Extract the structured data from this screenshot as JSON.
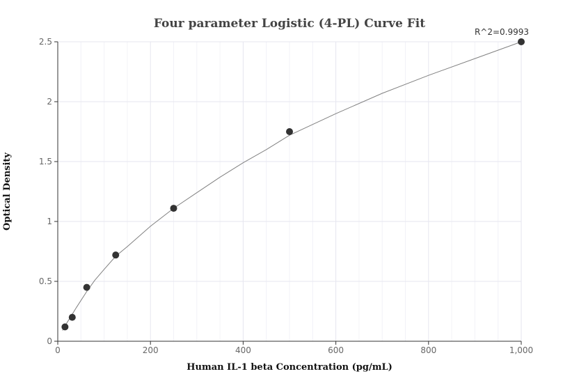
{
  "chart_data": {
    "type": "scatter",
    "title": "Four parameter Logistic (4-PL) Curve Fit",
    "xlabel": "Human IL-1 beta Concentration (pg/mL)",
    "ylabel": "Optical Density",
    "xlim": [
      0,
      1000
    ],
    "ylim": [
      0,
      2.5
    ],
    "x_ticks": [
      0,
      200,
      400,
      600,
      800,
      1000
    ],
    "x_tick_labels": [
      "0",
      "200",
      "400",
      "600",
      "800",
      "1,000"
    ],
    "y_ticks": [
      0,
      0.5,
      1,
      1.5,
      2,
      2.5
    ],
    "y_tick_labels": [
      "0",
      "0.5",
      "1",
      "1.5",
      "2",
      "2.5"
    ],
    "grid": true,
    "points": {
      "x": [
        15.6,
        31.25,
        62.5,
        125,
        250,
        500,
        1000
      ],
      "y": [
        0.12,
        0.2,
        0.45,
        0.72,
        1.11,
        1.75,
        2.5
      ]
    },
    "fit_curve": {
      "model": "4PL",
      "x": [
        10,
        15.6,
        20,
        31.25,
        40,
        62.5,
        80,
        100,
        125,
        150,
        200,
        250,
        300,
        350,
        400,
        450,
        500,
        600,
        700,
        800,
        900,
        1000
      ],
      "y": [
        0.09,
        0.125,
        0.155,
        0.225,
        0.28,
        0.415,
        0.51,
        0.6,
        0.71,
        0.79,
        0.96,
        1.11,
        1.24,
        1.37,
        1.49,
        1.6,
        1.72,
        1.9,
        2.07,
        2.22,
        2.36,
        2.5
      ]
    },
    "annotation": "R^2=0.9993",
    "colors": {
      "point": "#333333",
      "curve": "#808080",
      "grid": "#e6e6ef",
      "minor_grid": "#f2f2f7",
      "axis": "#333333"
    }
  }
}
